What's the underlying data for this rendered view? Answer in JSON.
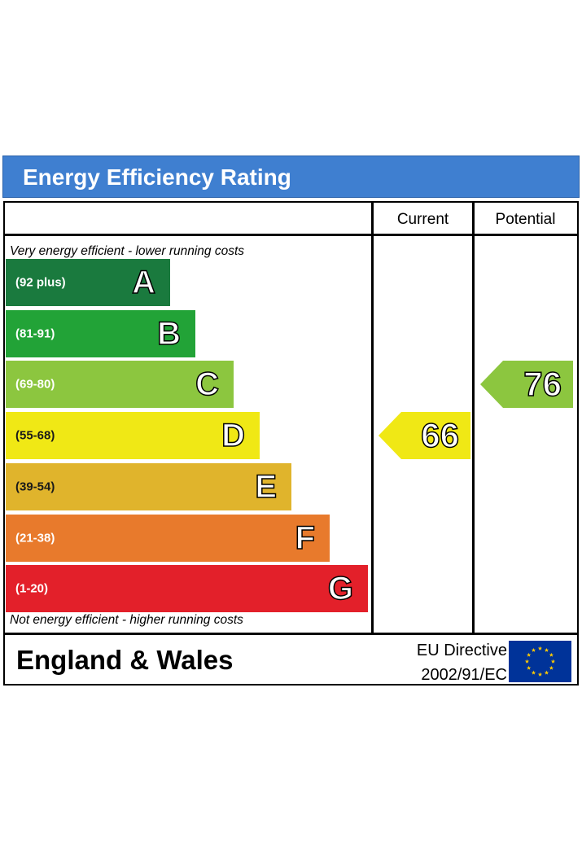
{
  "header": {
    "title": "Energy Efficiency Rating"
  },
  "columns": {
    "current": "Current",
    "potential": "Potential"
  },
  "notes": {
    "top": "Very energy efficient - lower running costs",
    "bottom": "Not energy efficient - higher running costs"
  },
  "chart_data": {
    "type": "bar",
    "title": "Energy Efficiency Rating",
    "bands": [
      {
        "letter": "A",
        "range": "(92 plus)",
        "color": "#1a7a3e"
      },
      {
        "letter": "B",
        "range": "(81-91)",
        "color": "#22a337"
      },
      {
        "letter": "C",
        "range": "(69-80)",
        "color": "#8cc63f"
      },
      {
        "letter": "D",
        "range": "(55-68)",
        "color": "#f0e815"
      },
      {
        "letter": "E",
        "range": "(39-54)",
        "color": "#e0b42c"
      },
      {
        "letter": "F",
        "range": "(21-38)",
        "color": "#e87a2c"
      },
      {
        "letter": "G",
        "range": "(1-20)",
        "color": "#e3202a"
      }
    ],
    "current": {
      "value": "66",
      "band": "D",
      "color": "#f0e815"
    },
    "potential": {
      "value": "76",
      "band": "C",
      "color": "#8cc63f"
    }
  },
  "footer": {
    "country": "England & Wales",
    "directive_line1": "EU Directive",
    "directive_line2": "2002/91/EC"
  },
  "icons": {
    "flag": "eu-flag-icon"
  }
}
